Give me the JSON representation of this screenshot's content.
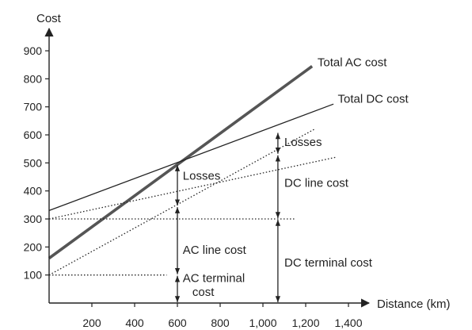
{
  "chart_data": {
    "type": "line",
    "ylabel": "Cost",
    "xlabel": "Distance (km)",
    "xlim": [
      0,
      1500
    ],
    "ylim": [
      0,
      950
    ],
    "x_ticks": [
      200,
      400,
      600,
      800,
      1000,
      1200,
      1400
    ],
    "x_tick_labels": [
      "200",
      "400",
      "600",
      "800",
      "1,000",
      "1,200",
      "1,400"
    ],
    "y_ticks": [
      100,
      200,
      300,
      400,
      500,
      600,
      700,
      800,
      900
    ],
    "y_tick_labels": [
      "100",
      "200",
      "300",
      "400",
      "500",
      "600",
      "700",
      "800",
      "900"
    ],
    "grid": false,
    "colors": {
      "ink": "#222222",
      "ac_total": "#555555"
    },
    "series": [
      {
        "key": "total_ac",
        "name": "Total AC cost",
        "style": "solid-thick",
        "x": [
          0,
          1230
        ],
        "y": [
          160,
          845
        ]
      },
      {
        "key": "total_dc",
        "name": "Total DC cost",
        "style": "solid",
        "x": [
          0,
          1330
        ],
        "y": [
          330,
          710
        ]
      },
      {
        "key": "ac_terminal_line",
        "style": "dotted",
        "x": [
          0,
          1240
        ],
        "y": [
          100,
          620
        ]
      },
      {
        "key": "dc_terminal_line",
        "style": "dotted",
        "x": [
          0,
          1340
        ],
        "y": [
          300,
          520
        ]
      },
      {
        "key": "dc_terminal_level",
        "style": "dotted",
        "x": [
          0,
          1150
        ],
        "y": [
          300,
          300
        ]
      },
      {
        "key": "ac_terminal_level",
        "style": "dotted",
        "x": [
          0,
          550
        ],
        "y": [
          100,
          100
        ]
      }
    ],
    "bars": [
      {
        "x": 600,
        "y1": 0,
        "y2": 100
      },
      {
        "x": 600,
        "y1": 100,
        "y2": 345
      },
      {
        "x": 600,
        "y1": 345,
        "y2": 495
      },
      {
        "x": 1070,
        "y1": 0,
        "y2": 300
      },
      {
        "x": 1070,
        "y1": 300,
        "y2": 530
      },
      {
        "x": 1070,
        "y1": 530,
        "y2": 610
      }
    ],
    "annotations": {
      "total_ac": {
        "text": "Total AC cost",
        "x": 1255,
        "y": 845
      },
      "total_dc": {
        "text": "Total DC cost",
        "x": 1350,
        "y": 715
      },
      "losses_ac": {
        "text": "Losses",
        "x": 625,
        "y": 440
      },
      "losses_dc": {
        "text": "Losses",
        "x": 1100,
        "y": 560
      },
      "dc_line_cost": {
        "text": "DC line cost",
        "x": 1100,
        "y": 415
      },
      "ac_line_cost": {
        "text": "AC line cost",
        "x": 625,
        "y": 175
      },
      "dc_terminal_cost": {
        "text": "DC terminal cost",
        "x": 1100,
        "y": 130
      },
      "ac_terminal_line1": {
        "text": "AC terminal",
        "x": 625,
        "y": 75
      },
      "ac_terminal_line2": {
        "text": "cost",
        "x": 670,
        "y": 25
      }
    }
  }
}
